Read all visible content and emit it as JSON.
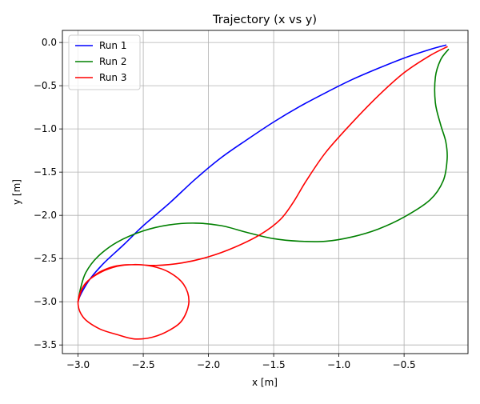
{
  "chart_data": {
    "type": "line",
    "title": "Trajectory (x vs y)",
    "xlabel": "x [m]",
    "ylabel": "y [m]",
    "xlim": [
      -3.12,
      -0.01
    ],
    "ylim": [
      -3.6,
      0.14
    ],
    "grid": true,
    "legend_position": "top-left",
    "x_ticks": [
      -3.0,
      -2.5,
      -2.0,
      -1.5,
      -1.0,
      -0.5
    ],
    "x_tick_labels": [
      "−3.0",
      "−2.5",
      "−2.0",
      "−1.5",
      "−1.0",
      "−0.5"
    ],
    "y_ticks": [
      0.0,
      -0.5,
      -1.0,
      -1.5,
      -2.0,
      -2.5,
      -3.0,
      -3.5
    ],
    "y_tick_labels": [
      "0.0",
      "−0.5",
      "−1.0",
      "−1.5",
      "−2.0",
      "−2.5",
      "−3.0",
      "−3.5"
    ],
    "series": [
      {
        "name": "Run 1",
        "color": "#0000ff",
        "points": [
          [
            -0.18,
            -0.03
          ],
          [
            -0.3,
            -0.08
          ],
          [
            -0.5,
            -0.18
          ],
          [
            -0.7,
            -0.3
          ],
          [
            -0.9,
            -0.43
          ],
          [
            -1.1,
            -0.58
          ],
          [
            -1.3,
            -0.74
          ],
          [
            -1.5,
            -0.92
          ],
          [
            -1.7,
            -1.12
          ],
          [
            -1.9,
            -1.33
          ],
          [
            -2.1,
            -1.58
          ],
          [
            -2.3,
            -1.86
          ],
          [
            -2.5,
            -2.12
          ],
          [
            -2.65,
            -2.34
          ],
          [
            -2.8,
            -2.55
          ],
          [
            -2.9,
            -2.72
          ],
          [
            -2.96,
            -2.86
          ],
          [
            -2.99,
            -2.95
          ],
          [
            -3.0,
            -3.0
          ]
        ]
      },
      {
        "name": "Run 2",
        "color": "#008000",
        "points": [
          [
            -0.16,
            -0.08
          ],
          [
            -0.22,
            -0.2
          ],
          [
            -0.26,
            -0.4
          ],
          [
            -0.26,
            -0.7
          ],
          [
            -0.22,
            -0.95
          ],
          [
            -0.18,
            -1.15
          ],
          [
            -0.17,
            -1.35
          ],
          [
            -0.2,
            -1.6
          ],
          [
            -0.3,
            -1.82
          ],
          [
            -0.5,
            -2.02
          ],
          [
            -0.7,
            -2.16
          ],
          [
            -0.9,
            -2.25
          ],
          [
            -1.1,
            -2.3
          ],
          [
            -1.3,
            -2.3
          ],
          [
            -1.5,
            -2.27
          ],
          [
            -1.7,
            -2.2
          ],
          [
            -1.9,
            -2.12
          ],
          [
            -2.1,
            -2.09
          ],
          [
            -2.3,
            -2.11
          ],
          [
            -2.5,
            -2.18
          ],
          [
            -2.7,
            -2.31
          ],
          [
            -2.85,
            -2.48
          ],
          [
            -2.94,
            -2.66
          ],
          [
            -2.98,
            -2.84
          ],
          [
            -3.0,
            -3.0
          ]
        ]
      },
      {
        "name": "Run 3",
        "color": "#ff0000",
        "points": [
          [
            -0.17,
            -0.05
          ],
          [
            -0.3,
            -0.15
          ],
          [
            -0.5,
            -0.35
          ],
          [
            -0.7,
            -0.62
          ],
          [
            -0.9,
            -0.93
          ],
          [
            -1.1,
            -1.27
          ],
          [
            -1.25,
            -1.6
          ],
          [
            -1.35,
            -1.85
          ],
          [
            -1.45,
            -2.05
          ],
          [
            -1.6,
            -2.22
          ],
          [
            -1.8,
            -2.37
          ],
          [
            -2.0,
            -2.48
          ],
          [
            -2.2,
            -2.55
          ],
          [
            -2.4,
            -2.58
          ],
          [
            -2.57,
            -2.57
          ],
          [
            -2.7,
            -2.59
          ],
          [
            -2.84,
            -2.67
          ],
          [
            -2.95,
            -2.8
          ],
          [
            -3.0,
            -3.0
          ],
          [
            -2.96,
            -3.18
          ],
          [
            -2.84,
            -3.31
          ],
          [
            -2.7,
            -3.38
          ],
          [
            -2.57,
            -3.43
          ],
          [
            -2.43,
            -3.41
          ],
          [
            -2.3,
            -3.33
          ],
          [
            -2.2,
            -3.21
          ],
          [
            -2.15,
            -3.0
          ],
          [
            -2.19,
            -2.8
          ],
          [
            -2.3,
            -2.66
          ],
          [
            -2.43,
            -2.59
          ],
          [
            -2.57,
            -2.57
          ],
          [
            -2.72,
            -2.59
          ],
          [
            -2.86,
            -2.68
          ],
          [
            -2.96,
            -2.83
          ],
          [
            -3.0,
            -3.0
          ]
        ]
      }
    ]
  }
}
